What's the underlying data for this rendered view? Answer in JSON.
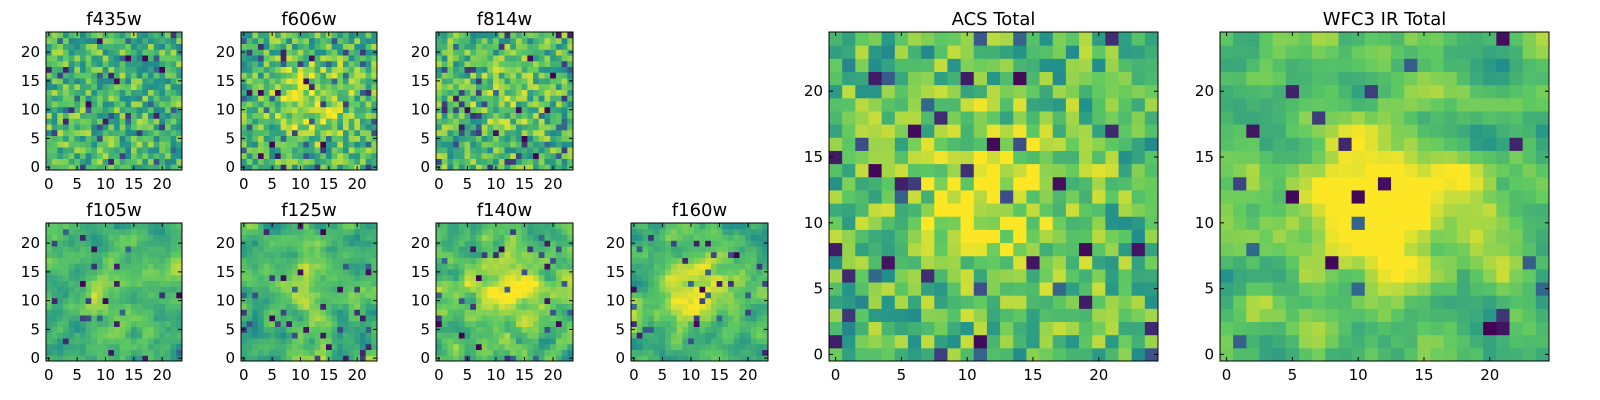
{
  "figure": {
    "description": "Grid of 9 image panels: 7 per-filter pixel maps and 2 total maps"
  },
  "colormap": {
    "name": "viridis",
    "low": "#440154",
    "mid1": "#31688e",
    "mid2": "#35b779",
    "high": "#fde725"
  },
  "chart_data": [
    {
      "type": "heatmap",
      "title": "f435w",
      "grid": [
        24,
        24
      ],
      "xticks": [
        "0",
        "5",
        "10",
        "15",
        "20"
      ],
      "yticks": [
        "0",
        "5",
        "10",
        "15",
        "20"
      ],
      "seed": 11,
      "smooth": 0,
      "peak": 0.0,
      "darkRate": 0.08
    },
    {
      "type": "heatmap",
      "title": "f606w",
      "grid": [
        24,
        24
      ],
      "xticks": [
        "0",
        "5",
        "10",
        "15",
        "20"
      ],
      "yticks": [
        "0",
        "5",
        "10",
        "15",
        "20"
      ],
      "seed": 23,
      "smooth": 0,
      "peak": 0.25,
      "darkRate": 0.07
    },
    {
      "type": "heatmap",
      "title": "f814w",
      "grid": [
        24,
        24
      ],
      "xticks": [
        "0",
        "5",
        "10",
        "15",
        "20"
      ],
      "yticks": [
        "0",
        "5",
        "10",
        "15",
        "20"
      ],
      "seed": 37,
      "smooth": 0,
      "peak": 0.1,
      "darkRate": 0.08
    },
    {
      "type": "heatmap",
      "title": "f105w",
      "grid": [
        24,
        24
      ],
      "xticks": [
        "0",
        "5",
        "10",
        "15",
        "20"
      ],
      "yticks": [
        "0",
        "5",
        "10",
        "15",
        "20"
      ],
      "seed": 41,
      "smooth": 1,
      "peak": 0.1,
      "darkRate": 0.06
    },
    {
      "type": "heatmap",
      "title": "f125w",
      "grid": [
        24,
        24
      ],
      "xticks": [
        "0",
        "5",
        "10",
        "15",
        "20"
      ],
      "yticks": [
        "0",
        "5",
        "10",
        "15",
        "20"
      ],
      "seed": 53,
      "smooth": 1,
      "peak": 0.15,
      "darkRate": 0.05
    },
    {
      "type": "heatmap",
      "title": "f140w",
      "grid": [
        24,
        24
      ],
      "xticks": [
        "0",
        "5",
        "10",
        "15",
        "20"
      ],
      "yticks": [
        "0",
        "5",
        "10",
        "15",
        "20"
      ],
      "seed": 67,
      "smooth": 1,
      "peak": 0.3,
      "darkRate": 0.05
    },
    {
      "type": "heatmap",
      "title": "f160w",
      "grid": [
        24,
        24
      ],
      "xticks": [
        "0",
        "5",
        "10",
        "15",
        "20"
      ],
      "yticks": [
        "0",
        "5",
        "10",
        "15",
        "20"
      ],
      "seed": 79,
      "smooth": 1,
      "peak": 0.35,
      "darkRate": 0.06
    },
    {
      "type": "heatmap",
      "title": "ACS Total",
      "grid": [
        25,
        25
      ],
      "xticks": [
        "0",
        "5",
        "10",
        "15",
        "20"
      ],
      "yticks": [
        "0",
        "5",
        "10",
        "15",
        "20"
      ],
      "seed": 83,
      "smooth": 0,
      "peak": 0.3,
      "darkRate": 0.05
    },
    {
      "type": "heatmap",
      "title": "WFC3 IR Total",
      "grid": [
        25,
        25
      ],
      "xticks": [
        "0",
        "5",
        "10",
        "15",
        "20"
      ],
      "yticks": [
        "0",
        "5",
        "10",
        "15",
        "20"
      ],
      "seed": 97,
      "smooth": 1,
      "peak": 0.45,
      "darkRate": 0.04
    }
  ]
}
